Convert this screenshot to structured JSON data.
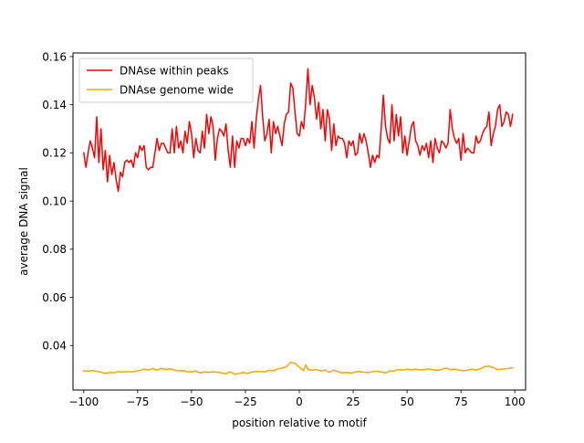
{
  "chart_data": {
    "type": "line",
    "title": "",
    "xlabel": "position relative to motif",
    "ylabel": "average DNA signal",
    "xlim": [
      -105,
      105
    ],
    "ylim": [
      0.0215,
      0.1615
    ],
    "xticks": [
      -100,
      -75,
      -50,
      -25,
      0,
      25,
      50,
      75,
      100
    ],
    "xtick_labels": [
      "−100",
      "−75",
      "−50",
      "−25",
      "0",
      "25",
      "50",
      "75",
      "100"
    ],
    "yticks": [
      0.04,
      0.06,
      0.08,
      0.1,
      0.12,
      0.14,
      0.16
    ],
    "ytick_labels": [
      "0.04",
      "0.06",
      "0.08",
      "0.10",
      "0.12",
      "0.14",
      "0.16"
    ],
    "grid": false,
    "legend_position": "top-left",
    "series": [
      {
        "name": "DNAse within peaks",
        "color": "#ff0000",
        "points": [
          [
            -100,
            0.12
          ],
          [
            -99,
            0.114
          ],
          [
            -98,
            0.12
          ],
          [
            -97,
            0.125
          ],
          [
            -96,
            0.122
          ],
          [
            -95,
            0.118
          ],
          [
            -94,
            0.135
          ],
          [
            -93,
            0.116
          ],
          [
            -92,
            0.13
          ],
          [
            -91,
            0.113
          ],
          [
            -90,
            0.121
          ],
          [
            -89,
            0.108
          ],
          [
            -88,
            0.119
          ],
          [
            -87,
            0.111
          ],
          [
            -86,
            0.116
          ],
          [
            -85,
            0.109
          ],
          [
            -84,
            0.104
          ],
          [
            -83,
            0.112
          ],
          [
            -82,
            0.11
          ],
          [
            -81,
            0.116
          ],
          [
            -80,
            0.117
          ],
          [
            -79,
            0.116
          ],
          [
            -78,
            0.117
          ],
          [
            -77,
            0.114
          ],
          [
            -76,
            0.12
          ],
          [
            -75,
            0.118
          ],
          [
            -74,
            0.123
          ],
          [
            -73,
            0.121
          ],
          [
            -72,
            0.123
          ],
          [
            -71,
            0.114
          ],
          [
            -70,
            0.113
          ],
          [
            -69,
            0.114
          ],
          [
            -68,
            0.114
          ],
          [
            -67,
            0.12
          ],
          [
            -66,
            0.126
          ],
          [
            -65,
            0.121
          ],
          [
            -64,
            0.124
          ],
          [
            -63,
            0.124
          ],
          [
            -62,
            0.122
          ],
          [
            -61,
            0.12
          ],
          [
            -60,
            0.12
          ],
          [
            -59,
            0.13
          ],
          [
            -58,
            0.12
          ],
          [
            -57,
            0.131
          ],
          [
            -56,
            0.122
          ],
          [
            -55,
            0.125
          ],
          [
            -54,
            0.12
          ],
          [
            -53,
            0.129
          ],
          [
            -52,
            0.124
          ],
          [
            -51,
            0.133
          ],
          [
            -50,
            0.128
          ],
          [
            -49,
            0.118
          ],
          [
            -48,
            0.126
          ],
          [
            -47,
            0.121
          ],
          [
            -46,
            0.12
          ],
          [
            -45,
            0.129
          ],
          [
            -44,
            0.122
          ],
          [
            -43,
            0.136
          ],
          [
            -42,
            0.128
          ],
          [
            -41,
            0.135
          ],
          [
            -40,
            0.131
          ],
          [
            -39,
            0.117
          ],
          [
            -38,
            0.126
          ],
          [
            -37,
            0.13
          ],
          [
            -36,
            0.129
          ],
          [
            -35,
            0.127
          ],
          [
            -34,
            0.132
          ],
          [
            -33,
            0.121
          ],
          [
            -32,
            0.114
          ],
          [
            -31,
            0.127
          ],
          [
            -30,
            0.114
          ],
          [
            -29,
            0.125
          ],
          [
            -28,
            0.122
          ],
          [
            -27,
            0.126
          ],
          [
            -26,
            0.126
          ],
          [
            -25,
            0.123
          ],
          [
            -24,
            0.126
          ],
          [
            -23,
            0.124
          ],
          [
            -22,
            0.133
          ],
          [
            -21,
            0.122
          ],
          [
            -20,
            0.134
          ],
          [
            -19,
            0.142
          ],
          [
            -18,
            0.148
          ],
          [
            -17,
            0.135
          ],
          [
            -16,
            0.125
          ],
          [
            -15,
            0.128
          ],
          [
            -14,
            0.134
          ],
          [
            -13,
            0.12
          ],
          [
            -12,
            0.133
          ],
          [
            -11,
            0.128
          ],
          [
            -10,
            0.131
          ],
          [
            -9,
            0.127
          ],
          [
            -8,
            0.123
          ],
          [
            -7,
            0.132
          ],
          [
            -6,
            0.136
          ],
          [
            -5,
            0.137
          ],
          [
            -4,
            0.149
          ],
          [
            -3,
            0.147
          ],
          [
            -2,
            0.137
          ],
          [
            -1,
            0.128
          ],
          [
            0,
            0.127
          ],
          [
            1,
            0.133
          ],
          [
            2,
            0.13
          ],
          [
            3,
            0.141
          ],
          [
            4,
            0.155
          ],
          [
            5,
            0.14
          ],
          [
            6,
            0.148
          ],
          [
            7,
            0.143
          ],
          [
            8,
            0.134
          ],
          [
            9,
            0.141
          ],
          [
            10,
            0.13
          ],
          [
            11,
            0.138
          ],
          [
            12,
            0.125
          ],
          [
            13,
            0.138
          ],
          [
            14,
            0.134
          ],
          [
            15,
            0.121
          ],
          [
            16,
            0.132
          ],
          [
            17,
            0.123
          ],
          [
            18,
            0.127
          ],
          [
            19,
            0.126
          ],
          [
            20,
            0.126
          ],
          [
            21,
            0.124
          ],
          [
            22,
            0.118
          ],
          [
            23,
            0.125
          ],
          [
            24,
            0.123
          ],
          [
            25,
            0.125
          ],
          [
            26,
            0.119
          ],
          [
            27,
            0.12
          ],
          [
            28,
            0.128
          ],
          [
            29,
            0.124
          ],
          [
            30,
            0.128
          ],
          [
            31,
            0.125
          ],
          [
            32,
            0.12
          ],
          [
            33,
            0.114
          ],
          [
            34,
            0.119
          ],
          [
            35,
            0.116
          ],
          [
            36,
            0.119
          ],
          [
            37,
            0.118
          ],
          [
            38,
            0.13
          ],
          [
            39,
            0.144
          ],
          [
            40,
            0.131
          ],
          [
            41,
            0.126
          ],
          [
            42,
            0.124
          ],
          [
            43,
            0.14
          ],
          [
            44,
            0.125
          ],
          [
            45,
            0.136
          ],
          [
            46,
            0.127
          ],
          [
            47,
            0.135
          ],
          [
            48,
            0.12
          ],
          [
            49,
            0.127
          ],
          [
            50,
            0.119
          ],
          [
            51,
            0.125
          ],
          [
            52,
            0.131
          ],
          [
            53,
            0.133
          ],
          [
            54,
            0.125
          ],
          [
            55,
            0.123
          ],
          [
            56,
            0.119
          ],
          [
            57,
            0.123
          ],
          [
            58,
            0.121
          ],
          [
            59,
            0.124
          ],
          [
            60,
            0.118
          ],
          [
            61,
            0.125
          ],
          [
            62,
            0.116
          ],
          [
            63,
            0.126
          ],
          [
            64,
            0.122
          ],
          [
            65,
            0.12
          ],
          [
            66,
            0.125
          ],
          [
            67,
            0.124
          ],
          [
            68,
            0.122
          ],
          [
            69,
            0.124
          ],
          [
            70,
            0.138
          ],
          [
            71,
            0.13
          ],
          [
            72,
            0.126
          ],
          [
            73,
            0.124
          ],
          [
            74,
            0.126
          ],
          [
            75,
            0.117
          ],
          [
            76,
            0.128
          ],
          [
            77,
            0.12
          ],
          [
            78,
            0.122
          ],
          [
            79,
            0.121
          ],
          [
            80,
            0.12
          ],
          [
            81,
            0.12
          ],
          [
            82,
            0.127
          ],
          [
            83,
            0.124
          ],
          [
            84,
            0.125
          ],
          [
            85,
            0.128
          ],
          [
            86,
            0.13
          ],
          [
            87,
            0.131
          ],
          [
            88,
            0.137
          ],
          [
            89,
            0.123
          ],
          [
            90,
            0.128
          ],
          [
            91,
            0.131
          ],
          [
            92,
            0.138
          ],
          [
            93,
            0.14
          ],
          [
            94,
            0.131
          ],
          [
            95,
            0.133
          ],
          [
            96,
            0.137
          ],
          [
            97,
            0.136
          ],
          [
            98,
            0.131
          ],
          [
            99,
            0.136
          ]
        ]
      },
      {
        "name": "DNAse genome wide",
        "color": "#ffa500",
        "points": [
          [
            -100,
            0.0295
          ],
          [
            -98,
            0.0293
          ],
          [
            -96,
            0.0296
          ],
          [
            -94,
            0.0293
          ],
          [
            -92,
            0.0289
          ],
          [
            -90,
            0.0284
          ],
          [
            -88,
            0.0288
          ],
          [
            -86,
            0.0287
          ],
          [
            -84,
            0.0292
          ],
          [
            -82,
            0.0289
          ],
          [
            -80,
            0.0292
          ],
          [
            -78,
            0.029
          ],
          [
            -76,
            0.0293
          ],
          [
            -74,
            0.0296
          ],
          [
            -72,
            0.0302
          ],
          [
            -70,
            0.0298
          ],
          [
            -68,
            0.0304
          ],
          [
            -66,
            0.0298
          ],
          [
            -64,
            0.0305
          ],
          [
            -62,
            0.03
          ],
          [
            -60,
            0.0303
          ],
          [
            -58,
            0.0298
          ],
          [
            -56,
            0.0294
          ],
          [
            -54,
            0.0296
          ],
          [
            -52,
            0.0291
          ],
          [
            -50,
            0.029
          ],
          [
            -48,
            0.0294
          ],
          [
            -46,
            0.0286
          ],
          [
            -44,
            0.029
          ],
          [
            -42,
            0.0288
          ],
          [
            -40,
            0.0291
          ],
          [
            -38,
            0.0289
          ],
          [
            -36,
            0.0286
          ],
          [
            -34,
            0.0283
          ],
          [
            -32,
            0.0291
          ],
          [
            -30,
            0.028
          ],
          [
            -28,
            0.0284
          ],
          [
            -26,
            0.0288
          ],
          [
            -24,
            0.0284
          ],
          [
            -22,
            0.029
          ],
          [
            -20,
            0.0292
          ],
          [
            -18,
            0.0293
          ],
          [
            -16,
            0.029
          ],
          [
            -14,
            0.0297
          ],
          [
            -12,
            0.0295
          ],
          [
            -10,
            0.0303
          ],
          [
            -8,
            0.0306
          ],
          [
            -6,
            0.0312
          ],
          [
            -4,
            0.033
          ],
          [
            -2,
            0.0326
          ],
          [
            0,
            0.031
          ],
          [
            2,
            0.0296
          ],
          [
            3,
            0.032
          ],
          [
            4,
            0.03
          ],
          [
            6,
            0.0297
          ],
          [
            8,
            0.03
          ],
          [
            10,
            0.0294
          ],
          [
            12,
            0.0298
          ],
          [
            14,
            0.0288
          ],
          [
            16,
            0.0298
          ],
          [
            18,
            0.0291
          ],
          [
            20,
            0.0286
          ],
          [
            22,
            0.0288
          ],
          [
            24,
            0.0285
          ],
          [
            26,
            0.029
          ],
          [
            28,
            0.0292
          ],
          [
            30,
            0.0289
          ],
          [
            32,
            0.0287
          ],
          [
            34,
            0.0292
          ],
          [
            36,
            0.0293
          ],
          [
            38,
            0.029
          ],
          [
            40,
            0.0286
          ],
          [
            42,
            0.0294
          ],
          [
            44,
            0.0294
          ],
          [
            46,
            0.03
          ],
          [
            48,
            0.0298
          ],
          [
            50,
            0.0302
          ],
          [
            52,
            0.0299
          ],
          [
            54,
            0.0302
          ],
          [
            56,
            0.0298
          ],
          [
            58,
            0.03
          ],
          [
            60,
            0.0303
          ],
          [
            62,
            0.0299
          ],
          [
            64,
            0.0297
          ],
          [
            66,
            0.03
          ],
          [
            68,
            0.0306
          ],
          [
            70,
            0.03
          ],
          [
            72,
            0.0302
          ],
          [
            74,
            0.0298
          ],
          [
            76,
            0.0295
          ],
          [
            78,
            0.0297
          ],
          [
            80,
            0.0302
          ],
          [
            82,
            0.0298
          ],
          [
            84,
            0.0303
          ],
          [
            86,
            0.0312
          ],
          [
            88,
            0.0315
          ],
          [
            90,
            0.0308
          ],
          [
            92,
            0.03
          ],
          [
            94,
            0.0302
          ],
          [
            96,
            0.0303
          ],
          [
            98,
            0.0306
          ],
          [
            99,
            0.0307
          ]
        ]
      }
    ]
  }
}
